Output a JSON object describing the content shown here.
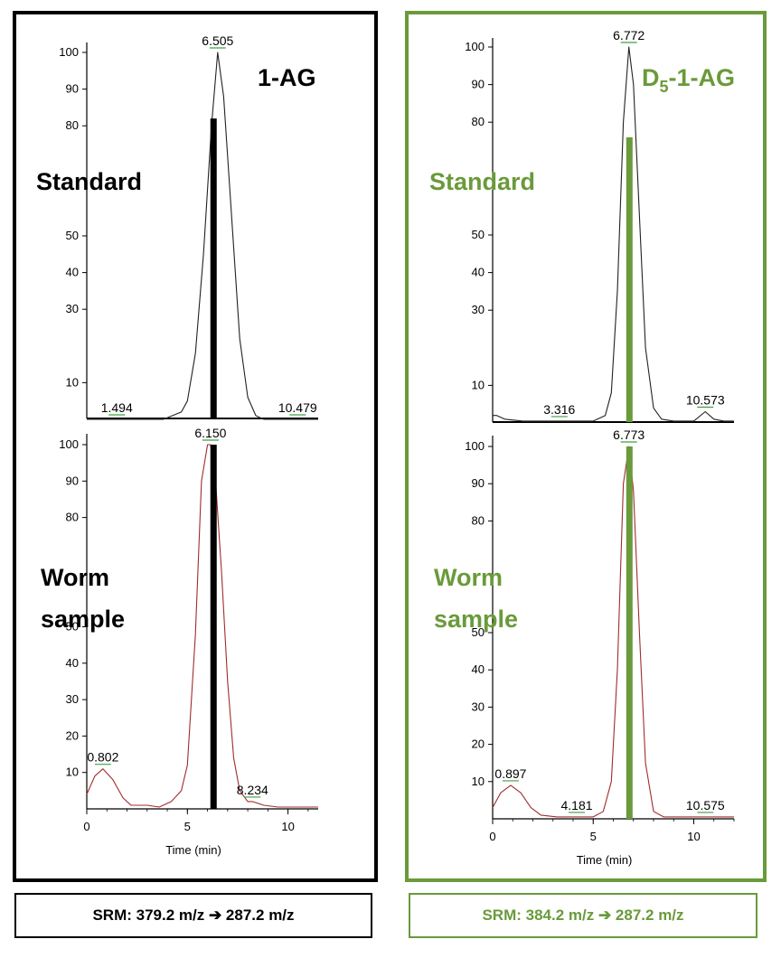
{
  "colors": {
    "black": "#000000",
    "green": "#6a9a3a",
    "trace_black": "#222222",
    "trace_red": "#a02c2c",
    "peak_underline": "#3aa040"
  },
  "chart_data": [
    {
      "type": "line",
      "panel": "left",
      "compound": "1-AG",
      "row_label": "Standard",
      "trace_color": "black",
      "xlim": [
        0,
        11.5
      ],
      "ylim": [
        0,
        100
      ],
      "yticks": [
        "10",
        "30",
        "40",
        "50",
        "80",
        "90",
        "100"
      ],
      "x": [
        0,
        1.494,
        3.8,
        4.7,
        5.0,
        5.4,
        5.8,
        6.2,
        6.505,
        6.8,
        7.2,
        7.6,
        8.0,
        8.4,
        8.8,
        10.479,
        11.5
      ],
      "y": [
        0,
        0,
        0,
        2,
        5,
        18,
        45,
        80,
        100,
        88,
        55,
        22,
        6,
        1,
        0,
        0,
        0
      ],
      "peak_labels": [
        {
          "x": 1.494,
          "text": "1.494"
        },
        {
          "x": 6.505,
          "text": "6.505"
        },
        {
          "x": 10.479,
          "text": "10.479"
        }
      ],
      "marker": {
        "x": 6.3,
        "top": 82
      }
    },
    {
      "type": "line",
      "panel": "left",
      "row_label": "Worm sample",
      "trace_color": "red",
      "xlim": [
        0,
        11.5
      ],
      "ylim": [
        0,
        100
      ],
      "yticks": [
        "10",
        "20",
        "30",
        "40",
        "50",
        "80",
        "90",
        "100"
      ],
      "x": [
        0,
        0.4,
        0.802,
        1.3,
        1.8,
        2.2,
        3.0,
        3.6,
        4.2,
        4.7,
        5.0,
        5.4,
        5.7,
        6.0,
        6.15,
        6.4,
        6.7,
        7.0,
        7.3,
        7.6,
        8.0,
        8.234,
        8.8,
        9.5,
        11.5
      ],
      "y": [
        4,
        9,
        11,
        8,
        3,
        1,
        1,
        0.5,
        2,
        5,
        12,
        48,
        90,
        100,
        100,
        90,
        65,
        35,
        14,
        5,
        2,
        2,
        1,
        0.5,
        0.5
      ],
      "peak_labels": [
        {
          "x": 0.802,
          "text": "0.802"
        },
        {
          "x": 6.15,
          "text": "6.150"
        },
        {
          "x": 8.234,
          "text": "8.234"
        }
      ],
      "marker": {
        "x": 6.3,
        "top": 100
      },
      "xticks": [
        "0",
        "5",
        "10"
      ],
      "xlabel": "Time (min)"
    },
    {
      "type": "line",
      "panel": "right",
      "compound": "D5-1-AG",
      "row_label": "Standard",
      "trace_color": "black",
      "xlim": [
        0,
        12
      ],
      "ylim": [
        0,
        100
      ],
      "yticks": [
        "10",
        "30",
        "40",
        "50",
        "80",
        "90",
        "100"
      ],
      "x": [
        0,
        0.2,
        0.6,
        1.5,
        3.316,
        5.0,
        5.6,
        5.9,
        6.2,
        6.5,
        6.772,
        7.0,
        7.3,
        7.6,
        8.0,
        8.4,
        9.0,
        10.0,
        10.573,
        11.0,
        11.5,
        12
      ],
      "y": [
        2,
        2,
        1,
        0.5,
        0.5,
        0.5,
        2,
        8,
        35,
        80,
        100,
        90,
        55,
        20,
        4,
        1,
        0.5,
        0.5,
        3,
        1,
        0.5,
        0.5
      ],
      "peak_labels": [
        {
          "x": 3.316,
          "text": "3.316"
        },
        {
          "x": 6.772,
          "text": "6.772"
        },
        {
          "x": 10.573,
          "text": "10.573"
        }
      ],
      "marker": {
        "x": 6.8,
        "top": 76
      }
    },
    {
      "type": "line",
      "panel": "right",
      "row_label": "Worm sample",
      "trace_color": "red",
      "xlim": [
        0,
        12
      ],
      "ylim": [
        0,
        100
      ],
      "yticks": [
        "10",
        "20",
        "30",
        "40",
        "50",
        "80",
        "90",
        "100"
      ],
      "x": [
        0,
        0.4,
        0.897,
        1.4,
        1.9,
        2.4,
        3.2,
        4.181,
        5.0,
        5.5,
        5.9,
        6.2,
        6.5,
        6.773,
        7.0,
        7.3,
        7.6,
        8.0,
        8.5,
        9.0,
        10.575,
        12
      ],
      "y": [
        3,
        7,
        9,
        7,
        3,
        1,
        0.5,
        0.5,
        0.5,
        2,
        10,
        40,
        90,
        100,
        88,
        50,
        15,
        2,
        0.5,
        0.5,
        0.5,
        0.5
      ],
      "peak_labels": [
        {
          "x": 0.897,
          "text": "0.897"
        },
        {
          "x": 4.181,
          "text": "4.181"
        },
        {
          "x": 6.773,
          "text": "6.773"
        },
        {
          "x": 10.575,
          "text": "10.575"
        }
      ],
      "marker": {
        "x": 6.8,
        "top": 100
      },
      "xticks": [
        "0",
        "5",
        "10"
      ],
      "xlabel": "Time (min)"
    }
  ],
  "labels": {
    "left_compound": "1-AG",
    "right_compound_prefix": "D",
    "right_compound_sub": "5",
    "right_compound_suffix": "-1-AG",
    "standard": "Standard",
    "worm_line1": "Worm",
    "worm_line2": "sample",
    "srm_left": "SRM: 379.2 m/z ➔ 287.2 m/z",
    "srm_right": "SRM: 384.2 m/z ➔ 287.2 m/z"
  }
}
